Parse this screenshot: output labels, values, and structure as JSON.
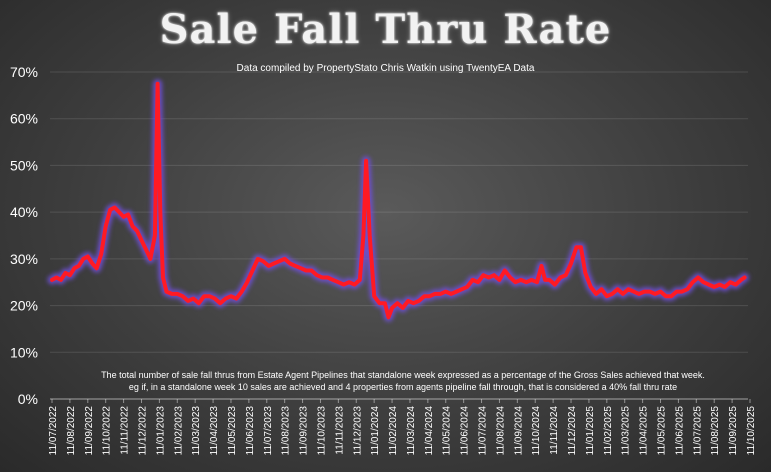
{
  "header": {
    "title": "Sale Fall Thru Rate",
    "subtitle": "Data compiled by PropertyStato Chris Watkin using TwentyEA Data"
  },
  "note": {
    "line1": "The total number of sale fall thrus from Estate Agent Pipelines that standalone week expressed as a percentage of the Gross Sales achieved that week.",
    "line2": "eg if, in a standalone week 10 sales are achieved and 4 properties from agents pipeline fall through, that is considered a 40%  fall thru rate"
  },
  "colors": {
    "line": "#ff1a24",
    "glow": "#6f4fd8",
    "text": "#ffffff"
  },
  "chart_data": {
    "type": "line",
    "title": "Sale Fall Thru Rate",
    "xlabel": "",
    "ylabel": "",
    "ylim": [
      0,
      70
    ],
    "yticks": [
      "0%",
      "10%",
      "20%",
      "30%",
      "40%",
      "50%",
      "60%",
      "70%"
    ],
    "xticks": [
      "11/07/2022",
      "11/08/2022",
      "11/09/2022",
      "11/10/2022",
      "11/11/2022",
      "11/12/2022",
      "11/01/2023",
      "11/02/2023",
      "11/03/2023",
      "11/04/2023",
      "11/05/2023",
      "11/06/2023",
      "11/07/2023",
      "11/08/2023",
      "11/09/2023",
      "11/10/2023",
      "11/11/2023",
      "11/12/2023",
      "11/01/2024",
      "11/02/2024",
      "11/03/2024",
      "11/04/2024",
      "11/05/2024",
      "11/06/2024",
      "11/07/2024",
      "11/08/2024",
      "11/09/2024",
      "11/10/2024",
      "11/11/2024",
      "11/12/2024",
      "11/01/2025",
      "11/02/2025",
      "11/03/2025",
      "11/04/2025",
      "11/05/2025",
      "11/06/2025",
      "11/07/2025",
      "11/08/2025",
      "11/09/2025",
      "11/10/2025"
    ],
    "grid": true,
    "legend": "none",
    "series": [
      {
        "points": [
          [
            0,
            25.5
          ],
          [
            0.25,
            26
          ],
          [
            0.5,
            25.5
          ],
          [
            0.75,
            27
          ],
          [
            1,
            26.5
          ],
          [
            1.25,
            28
          ],
          [
            1.5,
            28.5
          ],
          [
            1.75,
            30
          ],
          [
            2,
            30.5
          ],
          [
            2.25,
            29
          ],
          [
            2.5,
            28
          ],
          [
            2.75,
            31
          ],
          [
            3,
            37
          ],
          [
            3.25,
            40.5
          ],
          [
            3.5,
            41
          ],
          [
            3.75,
            40
          ],
          [
            4,
            39
          ],
          [
            4.25,
            39.5
          ],
          [
            4.5,
            37
          ],
          [
            4.75,
            36
          ],
          [
            5,
            34
          ],
          [
            5.25,
            32
          ],
          [
            5.5,
            30
          ],
          [
            5.75,
            35
          ],
          [
            5.9,
            67.5
          ],
          [
            6.05,
            40
          ],
          [
            6.2,
            26
          ],
          [
            6.4,
            23
          ],
          [
            6.7,
            22.5
          ],
          [
            7,
            22.5
          ],
          [
            7.3,
            22
          ],
          [
            7.6,
            21
          ],
          [
            7.9,
            21.5
          ],
          [
            8.2,
            20.5
          ],
          [
            8.5,
            22
          ],
          [
            8.8,
            22
          ],
          [
            9.1,
            21.5
          ],
          [
            9.4,
            20.5
          ],
          [
            9.7,
            21.5
          ],
          [
            10,
            22
          ],
          [
            10.3,
            21.5
          ],
          [
            10.6,
            23
          ],
          [
            10.9,
            25
          ],
          [
            11.2,
            27.5
          ],
          [
            11.5,
            30
          ],
          [
            11.8,
            29.5
          ],
          [
            12.1,
            28.5
          ],
          [
            12.4,
            29
          ],
          [
            12.7,
            29.5
          ],
          [
            13,
            30
          ],
          [
            13.3,
            29
          ],
          [
            13.6,
            28.5
          ],
          [
            13.9,
            28
          ],
          [
            14.2,
            27.5
          ],
          [
            14.5,
            27.5
          ],
          [
            14.8,
            26.5
          ],
          [
            15.1,
            26
          ],
          [
            15.4,
            26
          ],
          [
            15.7,
            25.5
          ],
          [
            16,
            25
          ],
          [
            16.3,
            24.5
          ],
          [
            16.6,
            25
          ],
          [
            16.9,
            24.5
          ],
          [
            17.2,
            25.5
          ],
          [
            17.4,
            35
          ],
          [
            17.55,
            51
          ],
          [
            17.75,
            35
          ],
          [
            18,
            22
          ],
          [
            18.3,
            20.5
          ],
          [
            18.6,
            20.5
          ],
          [
            18.8,
            17.5
          ],
          [
            19,
            19.5
          ],
          [
            19.3,
            20.5
          ],
          [
            19.6,
            19.5
          ],
          [
            19.9,
            21
          ],
          [
            20.2,
            20.5
          ],
          [
            20.5,
            21
          ],
          [
            20.8,
            22
          ],
          [
            21.1,
            22
          ],
          [
            21.4,
            22.5
          ],
          [
            21.7,
            22.5
          ],
          [
            22,
            23
          ],
          [
            22.3,
            22.5
          ],
          [
            22.6,
            23
          ],
          [
            22.9,
            23.5
          ],
          [
            23.2,
            24
          ],
          [
            23.5,
            25.5
          ],
          [
            23.8,
            25
          ],
          [
            24.1,
            26.5
          ],
          [
            24.4,
            26
          ],
          [
            24.7,
            26.5
          ],
          [
            25,
            25.5
          ],
          [
            25.3,
            27.5
          ],
          [
            25.6,
            26
          ],
          [
            25.9,
            25
          ],
          [
            26.2,
            25.5
          ],
          [
            26.5,
            25
          ],
          [
            26.8,
            25.5
          ],
          [
            27.1,
            25
          ],
          [
            27.35,
            28.5
          ],
          [
            27.55,
            25.5
          ],
          [
            27.8,
            25.5
          ],
          [
            28.1,
            24.5
          ],
          [
            28.4,
            26
          ],
          [
            28.7,
            26.5
          ],
          [
            29,
            29
          ],
          [
            29.3,
            32.5
          ],
          [
            29.55,
            32.5
          ],
          [
            29.8,
            27
          ],
          [
            30.1,
            24
          ],
          [
            30.4,
            22.5
          ],
          [
            30.7,
            23.5
          ],
          [
            31,
            22
          ],
          [
            31.3,
            22.5
          ],
          [
            31.6,
            23.5
          ],
          [
            31.9,
            22.5
          ],
          [
            32.2,
            23.5
          ],
          [
            32.5,
            23
          ],
          [
            32.8,
            22.5
          ],
          [
            33.1,
            23
          ],
          [
            33.4,
            23
          ],
          [
            33.7,
            22.5
          ],
          [
            34,
            23
          ],
          [
            34.3,
            22
          ],
          [
            34.6,
            22
          ],
          [
            34.9,
            23
          ],
          [
            35.2,
            23
          ],
          [
            35.5,
            23.5
          ],
          [
            35.8,
            25
          ],
          [
            36.1,
            26
          ],
          [
            36.4,
            25
          ],
          [
            36.7,
            24.5
          ],
          [
            37,
            24
          ],
          [
            37.3,
            24.5
          ],
          [
            37.6,
            24
          ],
          [
            37.9,
            25
          ],
          [
            38.2,
            24.5
          ],
          [
            38.5,
            25.5
          ],
          [
            38.7,
            26
          ]
        ]
      }
    ]
  }
}
